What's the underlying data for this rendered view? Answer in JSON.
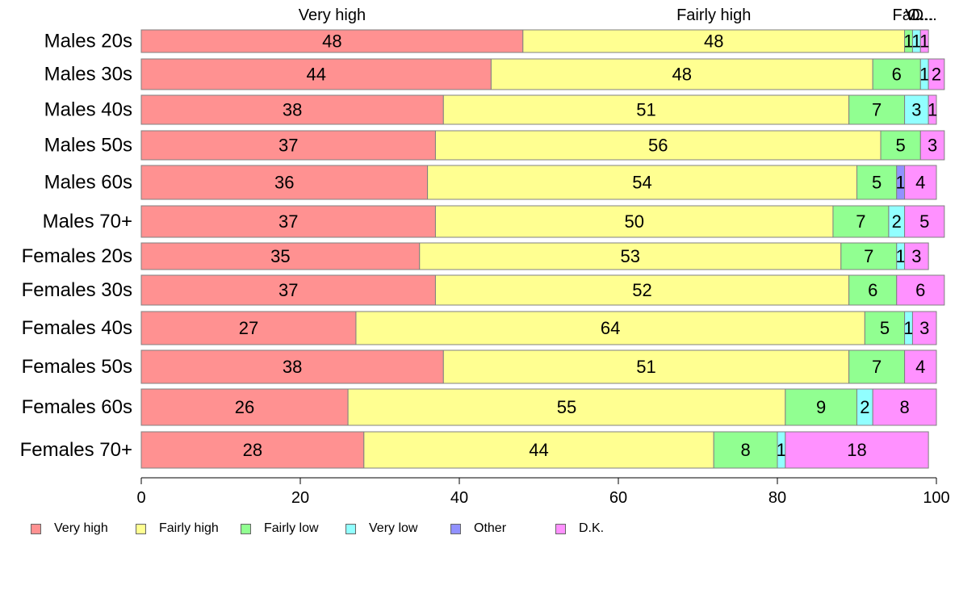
{
  "chart_data": {
    "type": "bar",
    "orientation": "horizontal",
    "stacked": true,
    "categories": [
      "Males 20s",
      "Males 30s",
      "Males 40s",
      "Males 50s",
      "Males 60s",
      "Males 70+",
      "Females 20s",
      "Females 30s",
      "Females 40s",
      "Females 50s",
      "Females 60s",
      "Females 70+"
    ],
    "series": [
      {
        "name": "Very high",
        "color": "#FF9191",
        "values": [
          48,
          44,
          38,
          37,
          36,
          37,
          35,
          37,
          27,
          38,
          26,
          28
        ]
      },
      {
        "name": "Fairly high",
        "color": "#FFFF91",
        "values": [
          48,
          48,
          51,
          56,
          54,
          50,
          53,
          52,
          64,
          51,
          55,
          44
        ]
      },
      {
        "name": "Fairly low",
        "color": "#91FF91",
        "values": [
          1,
          6,
          7,
          5,
          5,
          7,
          7,
          6,
          5,
          7,
          9,
          8
        ]
      },
      {
        "name": "Very low",
        "color": "#91FFFF",
        "values": [
          1,
          1,
          3,
          0,
          0,
          2,
          1,
          0,
          1,
          0,
          2,
          1
        ]
      },
      {
        "name": "Other",
        "color": "#9191FF",
        "values": [
          0,
          0,
          0,
          0,
          1,
          0,
          0,
          0,
          0,
          0,
          0,
          0
        ]
      },
      {
        "name": "D.K.",
        "color": "#FF91FF",
        "values": [
          1,
          2,
          1,
          3,
          4,
          5,
          3,
          6,
          3,
          4,
          8,
          18
        ]
      }
    ],
    "top_labels": [
      "Very high",
      "Fairly high",
      "Fa...",
      "V...",
      "O...",
      "D..."
    ],
    "xlim": [
      0,
      100
    ],
    "xticks": [
      "0",
      "20",
      "40",
      "60",
      "80",
      "100"
    ],
    "legend_position": "bottom"
  }
}
